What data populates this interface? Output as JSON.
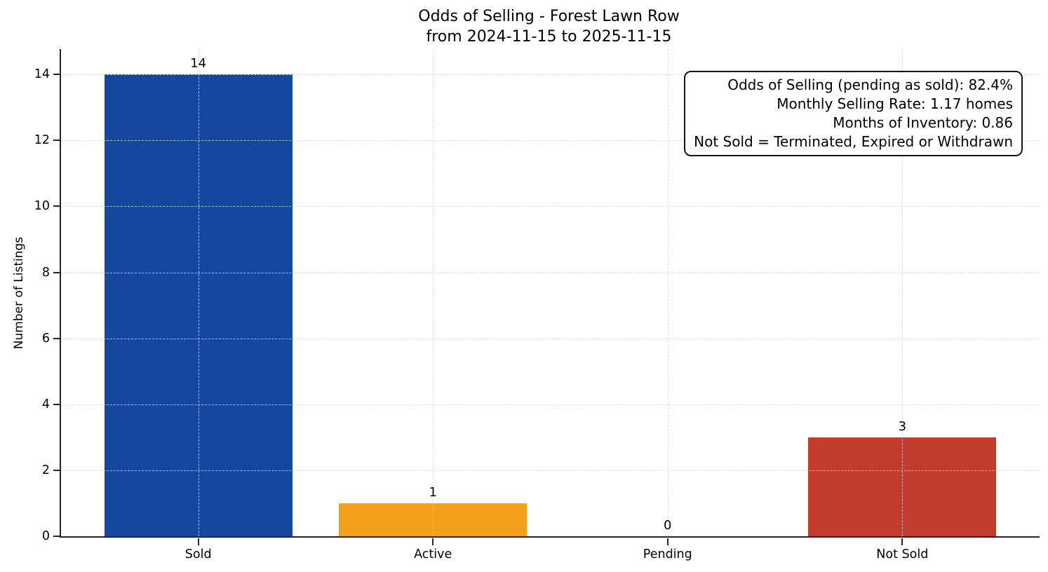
{
  "chart_data": {
    "type": "bar",
    "title_lines": [
      "Odds of Selling - Forest Lawn Row",
      "from 2024-11-15 to 2025-11-15"
    ],
    "categories": [
      "Sold",
      "Active",
      "Pending",
      "Not Sold"
    ],
    "values": [
      14,
      1,
      0,
      3
    ],
    "value_labels": [
      "14",
      "1",
      "0",
      "3"
    ],
    "bar_colors": [
      "#13489e",
      "#f3a11c",
      null,
      "#c23b2c"
    ],
    "xlabel": "",
    "ylabel": "Number of Listings",
    "yticks": [
      0,
      2,
      4,
      6,
      8,
      10,
      12,
      14
    ],
    "ylim": [
      0,
      14.77
    ],
    "grid": true,
    "grid_style": "dashed",
    "legend_position": "none",
    "annotation_lines": [
      "Odds of Selling (pending as sold): 82.4%",
      "Monthly Selling Rate: 1.17 homes",
      "Months of Inventory: 0.86",
      "Not Sold = Terminated, Expired or Withdrawn"
    ]
  },
  "colors": {
    "background": "#ffffff",
    "spine": "#262626",
    "grid": "#d6d6d6",
    "text": "#000000",
    "annotation_border": "#141414"
  }
}
